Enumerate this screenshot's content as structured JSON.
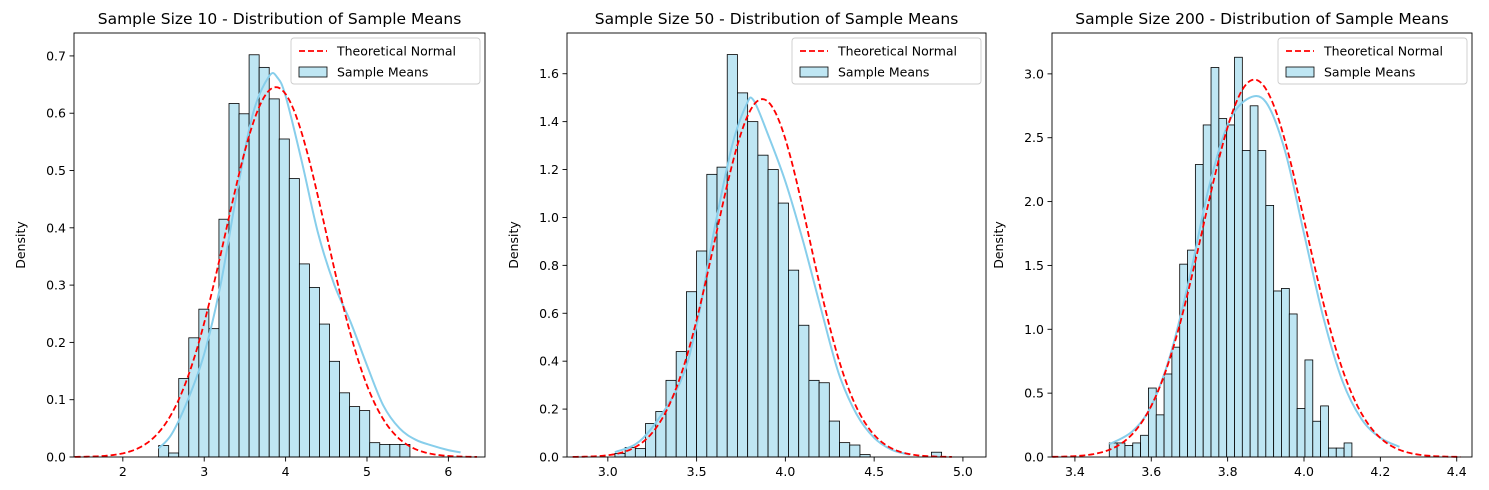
{
  "chart_data": [
    {
      "type": "histogram",
      "title": "Sample Size 10 - Distribution of Sample Means",
      "xlabel": "",
      "ylabel": "Density",
      "xlim": [
        1.4,
        6.45
      ],
      "ylim": [
        0,
        0.74
      ],
      "xticks": [
        2,
        3,
        4,
        5,
        6
      ],
      "yticks": [
        0.0,
        0.1,
        0.2,
        0.3,
        0.4,
        0.5,
        0.6,
        0.7
      ],
      "ytick_decimals": 1,
      "grid": false,
      "legend": {
        "position": "top-right",
        "items": [
          "Theoretical Normal",
          "Sample Means"
        ]
      },
      "bins": {
        "start": 2.44,
        "width": 0.1235,
        "densities": [
          0.02,
          0.007,
          0.137,
          0.208,
          0.258,
          0.224,
          0.415,
          0.617,
          0.599,
          0.702,
          0.68,
          0.625,
          0.555,
          0.486,
          0.337,
          0.296,
          0.232,
          0.167,
          0.112,
          0.088,
          0.081,
          0.025,
          0.022,
          0.022,
          0.022
        ]
      },
      "normal": {
        "mean": 3.88,
        "std": 0.618
      },
      "kde": {
        "x": [
          2.44,
          2.6,
          2.8,
          3.0,
          3.2,
          3.4,
          3.6,
          3.8,
          3.9,
          4.0,
          4.2,
          4.4,
          4.6,
          4.8,
          5.0,
          5.2,
          5.4,
          5.6,
          5.8,
          6.0,
          6.15
        ],
        "y": [
          0.015,
          0.04,
          0.1,
          0.18,
          0.3,
          0.46,
          0.6,
          0.665,
          0.662,
          0.63,
          0.515,
          0.39,
          0.3,
          0.235,
          0.16,
          0.09,
          0.05,
          0.03,
          0.02,
          0.012,
          0.008
        ]
      },
      "series": [
        {
          "name": "Theoretical Normal",
          "color": "#ff0000",
          "style": "dashed"
        },
        {
          "name": "Sample Means",
          "color": "#87ceeb",
          "style": "histogram+kde"
        }
      ]
    },
    {
      "type": "histogram",
      "title": "Sample Size 50 - Distribution of Sample Means",
      "xlabel": "",
      "ylabel": "Density",
      "xlim": [
        2.77,
        5.13
      ],
      "ylim": [
        0,
        1.77
      ],
      "xticks": [
        3.0,
        3.5,
        4.0,
        4.5,
        5.0
      ],
      "yticks": [
        0.0,
        0.2,
        0.4,
        0.6,
        0.8,
        1.0,
        1.2,
        1.4,
        1.6
      ],
      "ytick_decimals": 1,
      "grid": false,
      "legend": {
        "position": "top-right",
        "items": [
          "Theoretical Normal",
          "Sample Means"
        ]
      },
      "bins": {
        "start": 3.04,
        "width": 0.0575,
        "densities": [
          0.015,
          0.04,
          0.035,
          0.14,
          0.19,
          0.32,
          0.44,
          0.69,
          0.86,
          1.18,
          1.21,
          1.68,
          1.52,
          1.4,
          1.26,
          1.2,
          1.06,
          0.78,
          0.55,
          0.32,
          0.31,
          0.15,
          0.06,
          0.05,
          0.01,
          0,
          0,
          0,
          0,
          0,
          0,
          0.02
        ]
      },
      "normal": {
        "mean": 3.87,
        "std": 0.267
      },
      "kde": {
        "x": [
          3.04,
          3.2,
          3.4,
          3.5,
          3.6,
          3.7,
          3.78,
          3.82,
          3.9,
          4.0,
          4.1,
          4.2,
          4.3,
          4.4,
          4.5,
          4.6,
          4.7
        ],
        "y": [
          0.02,
          0.08,
          0.3,
          0.55,
          0.95,
          1.3,
          1.47,
          1.49,
          1.35,
          1.15,
          0.9,
          0.62,
          0.35,
          0.18,
          0.08,
          0.03,
          0.01
        ]
      },
      "series": [
        {
          "name": "Theoretical Normal",
          "color": "#ff0000",
          "style": "dashed"
        },
        {
          "name": "Sample Means",
          "color": "#87ceeb",
          "style": "histogram+kde"
        }
      ]
    },
    {
      "type": "histogram",
      "title": "Sample Size 200 - Distribution of Sample Means",
      "xlabel": "",
      "ylabel": "Density",
      "xlim": [
        3.34,
        4.44
      ],
      "ylim": [
        0,
        3.32
      ],
      "xticks": [
        3.4,
        3.6,
        3.8,
        4.0,
        4.2,
        4.4
      ],
      "yticks": [
        0.0,
        0.5,
        1.0,
        1.5,
        2.0,
        2.5,
        3.0
      ],
      "ytick_decimals": 1,
      "grid": false,
      "legend": {
        "position": "top-right",
        "items": [
          "Theoretical Normal",
          "Sample Means"
        ]
      },
      "bins": {
        "start": 3.49,
        "width": 0.0205,
        "densities": [
          0.11,
          0.11,
          0.09,
          0.11,
          0.17,
          0.54,
          0.33,
          0.65,
          0.86,
          1.51,
          1.62,
          2.29,
          2.6,
          3.05,
          2.65,
          2.6,
          3.13,
          2.4,
          2.75,
          2.4,
          1.97,
          1.3,
          1.32,
          1.12,
          0.38,
          0.76,
          0.28,
          0.4,
          0.07,
          0.07,
          0.11
        ]
      },
      "normal": {
        "mean": 3.87,
        "std": 0.135
      },
      "kde": {
        "x": [
          3.49,
          3.55,
          3.6,
          3.65,
          3.7,
          3.75,
          3.8,
          3.85,
          3.9,
          3.95,
          4.0,
          4.05,
          4.1,
          4.15,
          4.2,
          4.25
        ],
        "y": [
          0.1,
          0.2,
          0.4,
          0.8,
          1.4,
          2.1,
          2.6,
          2.8,
          2.78,
          2.4,
          1.75,
          1.1,
          0.6,
          0.3,
          0.15,
          0.08
        ]
      },
      "series": [
        {
          "name": "Theoretical Normal",
          "color": "#ff0000",
          "style": "dashed"
        },
        {
          "name": "Sample Means",
          "color": "#87ceeb",
          "style": "histogram+kde"
        }
      ]
    }
  ],
  "colors": {
    "bar_fill": "#bfe6f3",
    "bar_edge": "#000000",
    "kde_line": "#87ceeb",
    "normal_line": "#ff0000"
  }
}
